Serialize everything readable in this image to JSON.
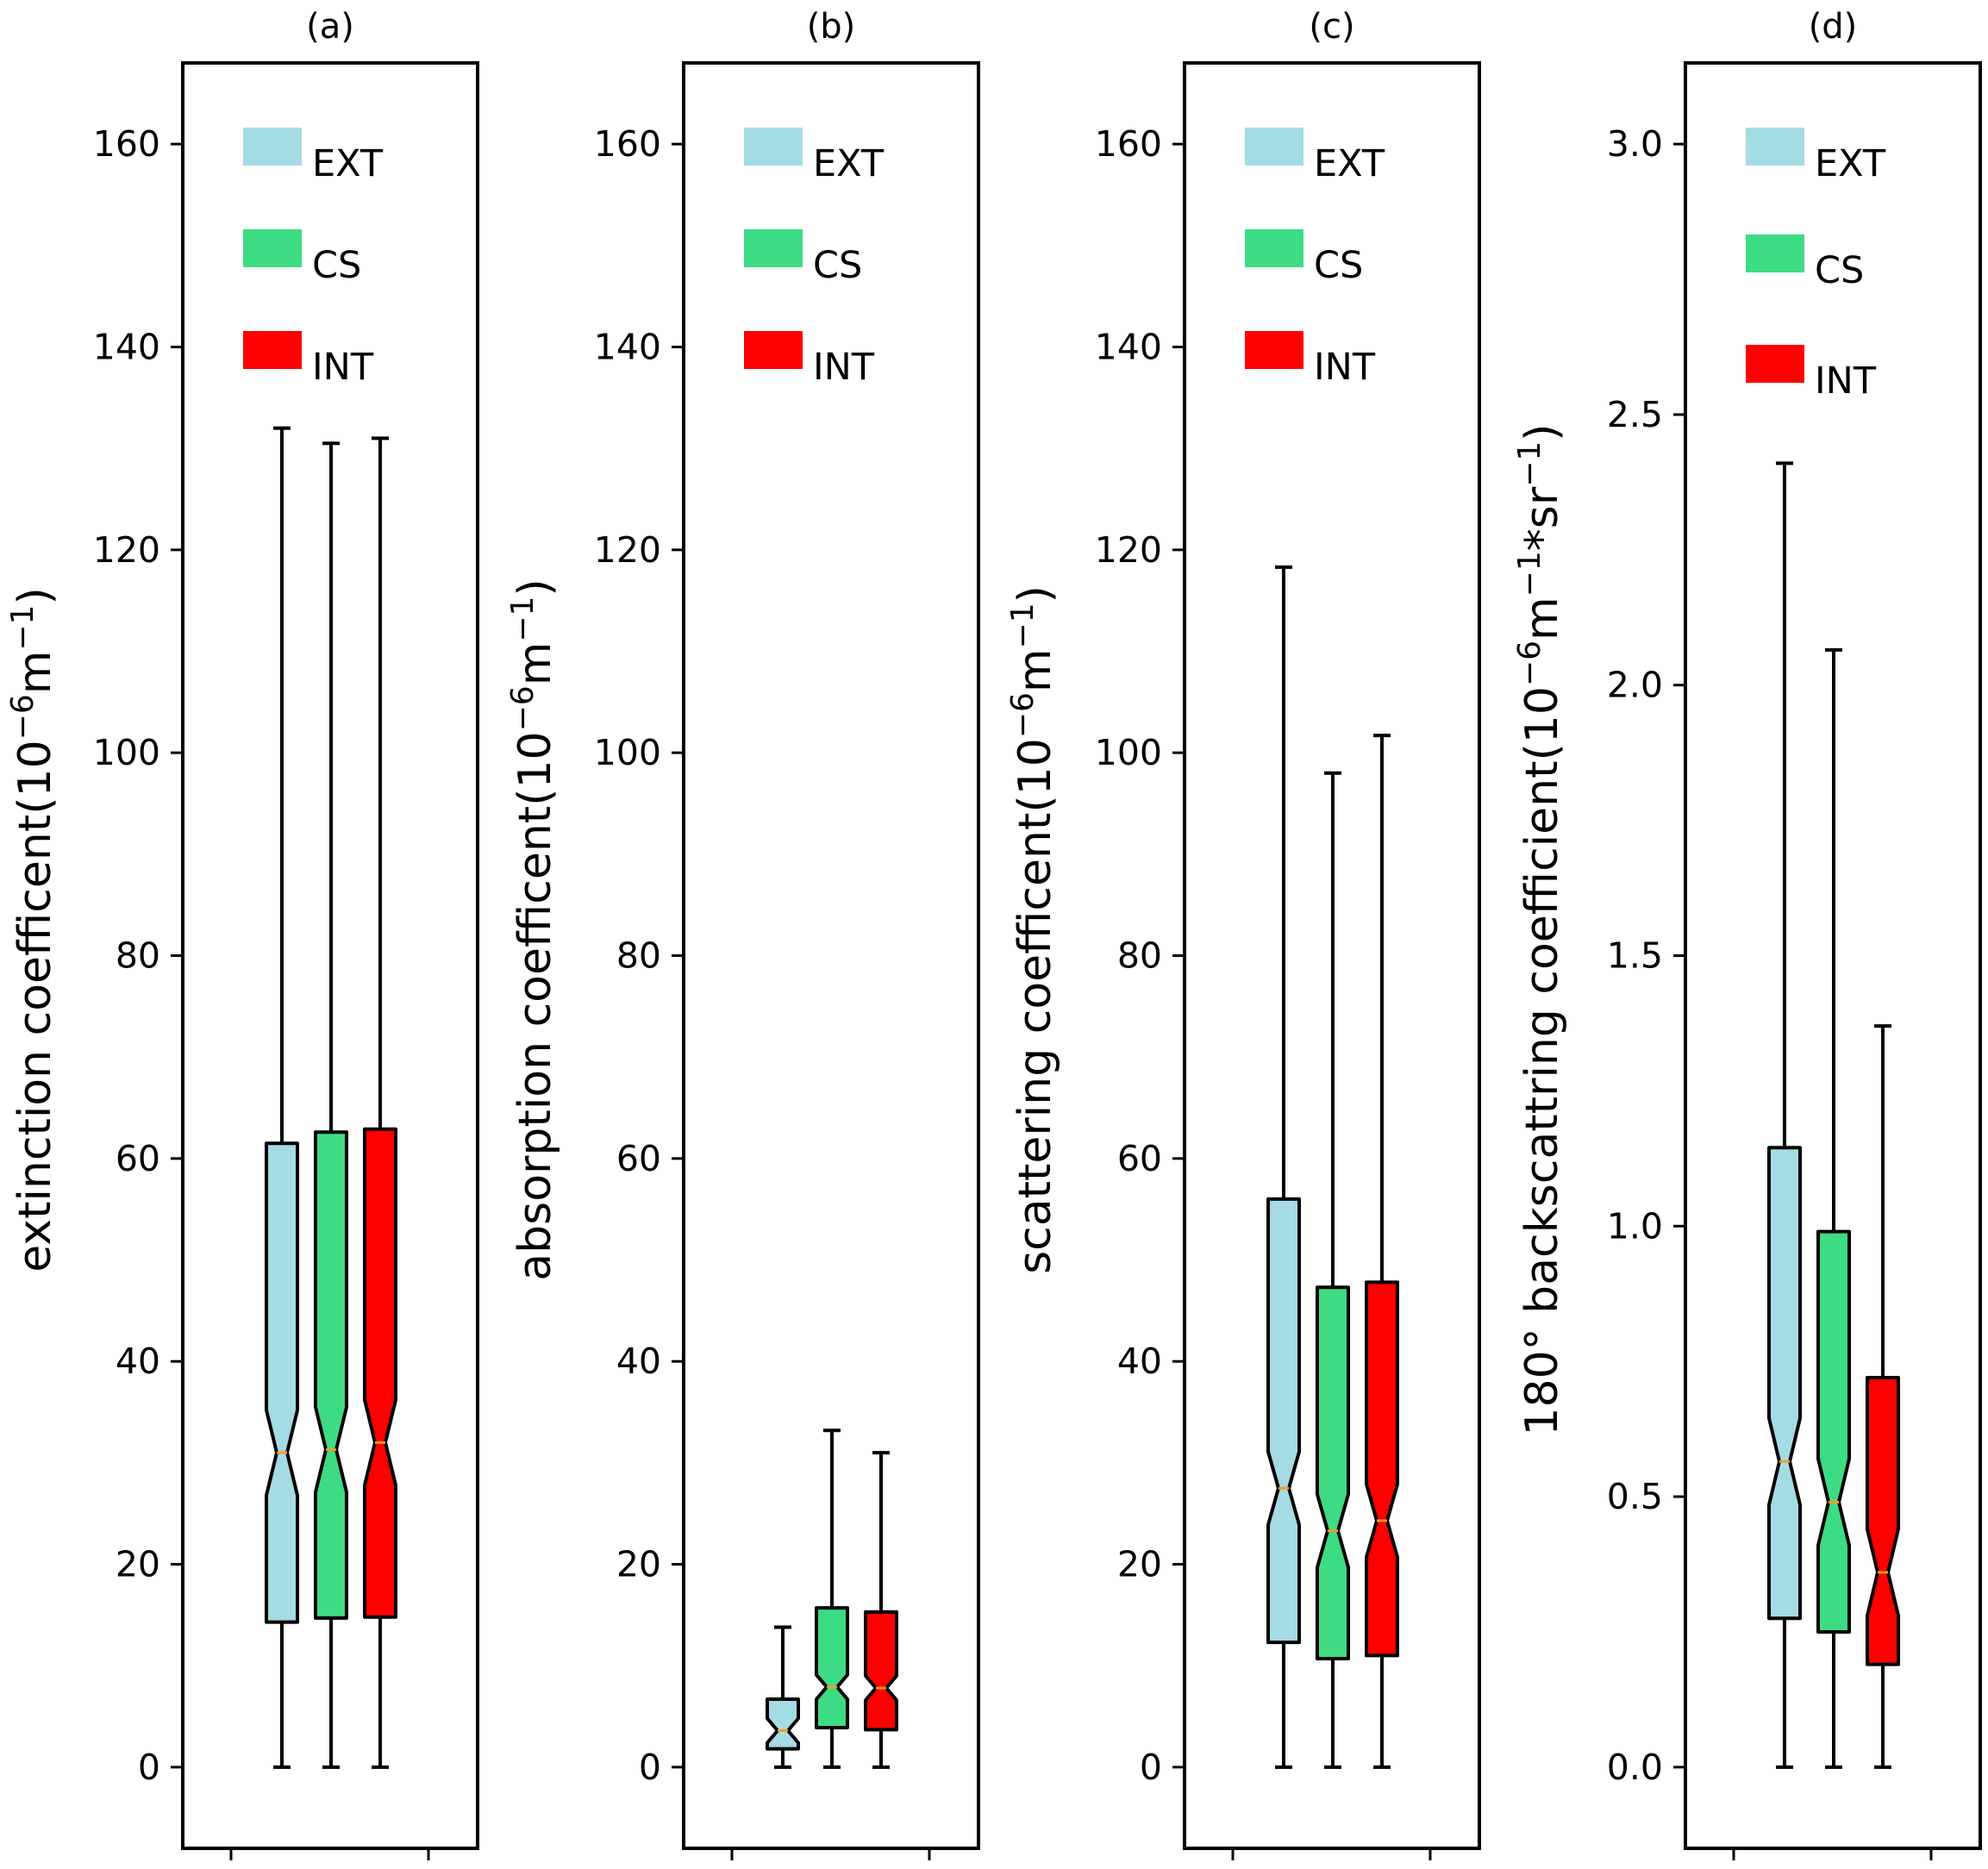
{
  "chart_data": [
    {
      "type": "box",
      "title": "(a)",
      "ylabel": {
        "base": "extinction coefficent(10",
        "sup1": "−6",
        "mid": "m",
        "sup2": "−1",
        "tail": ")"
      },
      "ylim": [
        -8,
        168
      ],
      "yticks": [
        0,
        20,
        40,
        60,
        80,
        100,
        120,
        140,
        160
      ],
      "tick_decimals": 0,
      "notch_half": 4.2,
      "series": [
        {
          "name": "EXT",
          "min": 0,
          "q1": 14.3,
          "median": 31.0,
          "q3": 61.5,
          "max": 132.0
        },
        {
          "name": "CS",
          "min": 0,
          "q1": 14.7,
          "median": 31.3,
          "q3": 62.6,
          "max": 130.5
        },
        {
          "name": "INT",
          "min": 0,
          "q1": 14.8,
          "median": 32.0,
          "q3": 62.9,
          "max": 131.0
        }
      ]
    },
    {
      "type": "box",
      "title": "(b)",
      "ylabel": {
        "base": "absorption coefficent(10",
        "sup1": "−6",
        "mid": "m",
        "sup2": "−1",
        "tail": ")"
      },
      "ylim": [
        -8,
        168
      ],
      "yticks": [
        0,
        20,
        40,
        60,
        80,
        100,
        120,
        140,
        160
      ],
      "tick_decimals": 0,
      "notch_half": 1.2,
      "series": [
        {
          "name": "EXT",
          "min": 0,
          "q1": 1.8,
          "median": 3.6,
          "q3": 6.7,
          "max": 13.8
        },
        {
          "name": "CS",
          "min": 0,
          "q1": 3.9,
          "median": 7.9,
          "q3": 15.7,
          "max": 33.2
        },
        {
          "name": "INT",
          "min": 0,
          "q1": 3.7,
          "median": 7.8,
          "q3": 15.3,
          "max": 31.0
        }
      ]
    },
    {
      "type": "box",
      "title": "(c)",
      "ylabel": {
        "base": "scattering coefficent(10",
        "sup1": "−6",
        "mid": "m",
        "sup2": "−1",
        "tail": ")"
      },
      "ylim": [
        -8,
        168
      ],
      "yticks": [
        0,
        20,
        40,
        60,
        80,
        100,
        120,
        140,
        160
      ],
      "tick_decimals": 0,
      "notch_half": 3.6,
      "series": [
        {
          "name": "EXT",
          "min": 0,
          "q1": 12.3,
          "median": 27.5,
          "q3": 56.0,
          "max": 118.3
        },
        {
          "name": "CS",
          "min": 0,
          "q1": 10.7,
          "median": 23.3,
          "q3": 47.3,
          "max": 98.0
        },
        {
          "name": "INT",
          "min": 0,
          "q1": 11.0,
          "median": 24.3,
          "q3": 47.8,
          "max": 101.7
        }
      ]
    },
    {
      "type": "box",
      "title": "(d)",
      "ylabel": {
        "base": "180° backscattring coefficient(10",
        "sup1": "−6",
        "mid": "m",
        "sup2": "−1",
        "tail": "*sr",
        "sup3": "−1",
        "tail2": ")"
      },
      "ylim": [
        -0.15,
        3.15
      ],
      "yticks": [
        0.0,
        0.5,
        1.0,
        1.5,
        2.0,
        2.5,
        3.0
      ],
      "tick_decimals": 1,
      "notch_half": 0.08,
      "series": [
        {
          "name": "EXT",
          "min": 0,
          "q1": 0.275,
          "median": 0.565,
          "q3": 1.145,
          "max": 2.41
        },
        {
          "name": "CS",
          "min": 0,
          "q1": 0.25,
          "median": 0.49,
          "q3": 0.99,
          "max": 2.065
        },
        {
          "name": "INT",
          "min": 0,
          "q1": 0.19,
          "median": 0.36,
          "q3": 0.72,
          "max": 1.37
        }
      ]
    }
  ],
  "legend": [
    {
      "label": "EXT",
      "color": "#a5dbe3"
    },
    {
      "label": "CS",
      "color": "#3ddc84"
    },
    {
      "label": "INT",
      "color": "#ff0000"
    }
  ],
  "colors": {
    "EXT": "#a5dbe3",
    "CS": "#3ddc84",
    "INT": "#ff0000",
    "median": "#ff9a1f",
    "axes": "#000000"
  },
  "grid": false,
  "legend_position": "upper-left inside each panel"
}
